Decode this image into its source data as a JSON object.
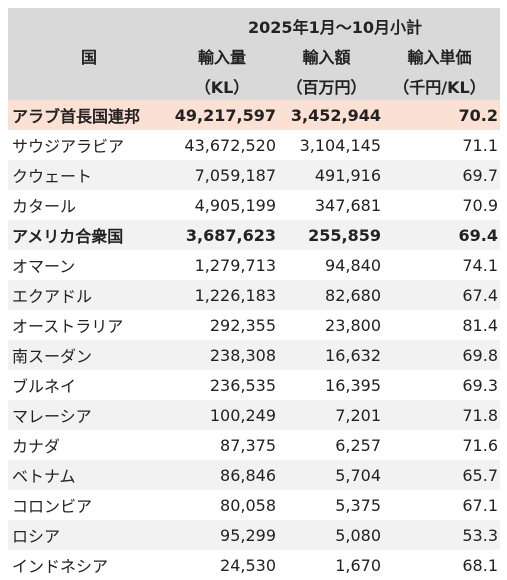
{
  "table": {
    "period": "2025年1月～10月小計",
    "headers": [
      [
        "国"
      ],
      [
        "輸入量",
        "（KL）"
      ],
      [
        "輸入額",
        "（百万円）"
      ],
      [
        "輸入単価",
        "（千円/KL）"
      ]
    ],
    "rows": [
      [
        "アラブ首長国連邦",
        "49,217,597",
        "3,452,944",
        "70.2"
      ],
      [
        "サウジアラビア",
        "43,672,520",
        "3,104,145",
        "71.1"
      ],
      [
        "クウェート",
        "7,059,187",
        "491,916",
        "69.7"
      ],
      [
        "カタール",
        "4,905,199",
        "347,681",
        "70.9"
      ],
      [
        "アメリカ合衆国",
        "3,687,623",
        "255,859",
        "69.4"
      ],
      [
        "オマーン",
        "1,279,713",
        "94,840",
        "74.1"
      ],
      [
        "エクアドル",
        "1,226,183",
        "82,680",
        "67.4"
      ],
      [
        "オーストラリア",
        "292,355",
        "23,800",
        "81.4"
      ],
      [
        "南スーダン",
        "238,308",
        "16,632",
        "69.8"
      ],
      [
        "ブルネイ",
        "236,535",
        "16,395",
        "69.3"
      ],
      [
        "マレーシア",
        "100,249",
        "7,201",
        "71.8"
      ],
      [
        "カナダ",
        "87,375",
        "6,257",
        "71.6"
      ],
      [
        "ベトナム",
        "86,846",
        "5,704",
        "65.7"
      ],
      [
        "コロンビア",
        "80,058",
        "5,375",
        "67.1"
      ],
      [
        "ロシア",
        "95,299",
        "5,080",
        "53.3"
      ],
      [
        "インドネシア",
        "24,530",
        "1,670",
        "68.1"
      ]
    ]
  }
}
